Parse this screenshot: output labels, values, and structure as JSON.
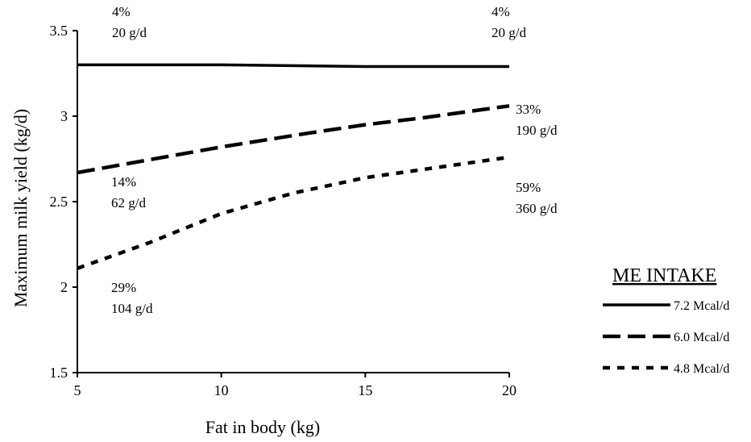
{
  "chart_data": {
    "type": "line",
    "title": "",
    "xlabel": "Fat in body (kg)",
    "ylabel": "Maximum milk yield (kg/d)",
    "xlim": [
      5,
      20
    ],
    "ylim": [
      1.5,
      3.5
    ],
    "xticks": [
      5,
      10,
      15,
      20
    ],
    "xtick_labels": [
      "5",
      "10",
      "15",
      "20"
    ],
    "yticks": [
      1.5,
      2,
      2.5,
      3,
      3.5
    ],
    "ytick_labels": [
      "1.5",
      "2",
      "2.5",
      "3",
      "3.5"
    ],
    "grid": false,
    "legend": {
      "title": "ME   INTAKE",
      "placement": "right"
    },
    "series": [
      {
        "name": "7.2 Mcal/d",
        "style": "solid",
        "x": [
          5,
          10,
          15,
          20
        ],
        "y": [
          3.3,
          3.3,
          3.29,
          3.29
        ]
      },
      {
        "name": "6.0 Mcal/d",
        "style": "dashed",
        "x": [
          5,
          8,
          10,
          13,
          15,
          17,
          20
        ],
        "y": [
          2.67,
          2.76,
          2.82,
          2.9,
          2.95,
          2.99,
          3.06
        ]
      },
      {
        "name": "4.8 Mcal/d",
        "style": "dotted",
        "x": [
          5,
          7.5,
          10,
          12.5,
          15,
          17.5,
          20
        ],
        "y": [
          2.11,
          2.26,
          2.43,
          2.55,
          2.64,
          2.7,
          2.76
        ]
      }
    ],
    "annotations": [
      {
        "id": "a1",
        "lines": [
          "4%",
          "20 g/d"
        ],
        "x": 5,
        "y": 3.3
      },
      {
        "id": "a2",
        "lines": [
          "4%",
          "20 g/d"
        ],
        "x": 20,
        "y": 3.29
      },
      {
        "id": "a3",
        "lines": [
          "33%",
          "190 g/d"
        ],
        "x": 20,
        "y": 3.06
      },
      {
        "id": "a4",
        "lines": [
          "14%",
          "62 g/d"
        ],
        "x": 5,
        "y": 2.67
      },
      {
        "id": "a5",
        "lines": [
          "59%",
          "360 g/d"
        ],
        "x": 20,
        "y": 2.76
      },
      {
        "id": "a6",
        "lines": [
          "29%",
          "104 g/d"
        ],
        "x": 5,
        "y": 2.11
      }
    ]
  }
}
